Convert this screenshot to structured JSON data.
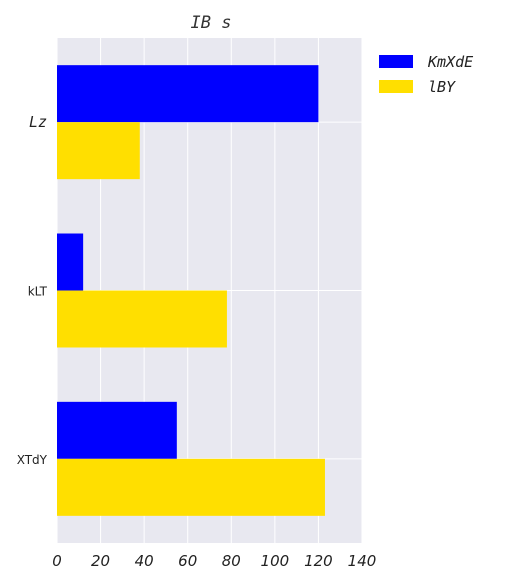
{
  "chart_data": {
    "type": "bar",
    "orientation": "horizontal",
    "title": "IB s",
    "categories": [
      "Lz",
      "kLT",
      "XTdY"
    ],
    "series": [
      {
        "name": "KmXdE",
        "values": [
          120,
          12,
          55
        ],
        "color": "#0000ff"
      },
      {
        "name": "lBY",
        "values": [
          38,
          78,
          123
        ],
        "color": "#ffdf00"
      }
    ],
    "xlim": [
      0,
      140
    ],
    "xticks": [
      "0",
      "20",
      "40",
      "60",
      "80",
      "100",
      "120",
      "140"
    ],
    "xlabel": "",
    "ylabel": "",
    "grid": true,
    "legend_position": "outside-right"
  }
}
